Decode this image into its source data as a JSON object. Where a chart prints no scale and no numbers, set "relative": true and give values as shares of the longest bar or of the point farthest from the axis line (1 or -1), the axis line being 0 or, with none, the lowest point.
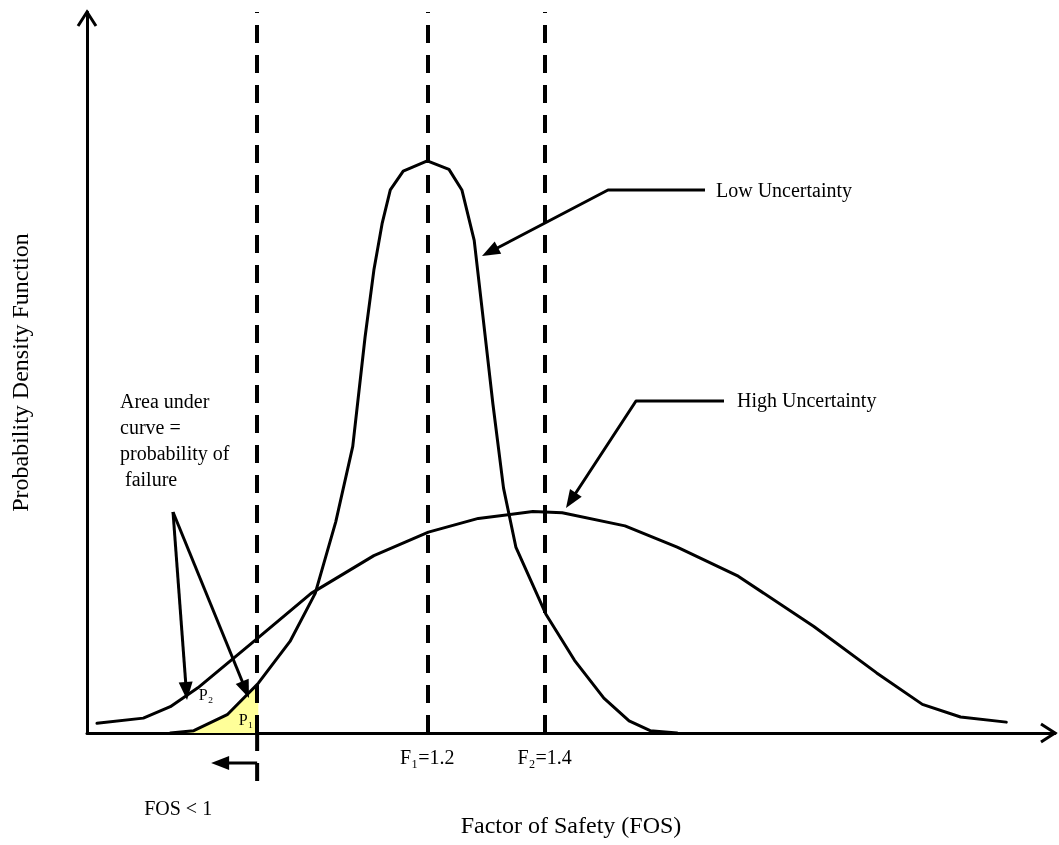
{
  "chart_data": {
    "type": "line",
    "xlabel": "Factor of Safety (FOS)",
    "ylabel": "Probability Density Function",
    "relative": true,
    "xlim": [
      0.62,
      2.27
    ],
    "xticks": [
      {
        "value": 1.2,
        "label": "F₁=1.2"
      },
      {
        "value": 1.4,
        "label": "F₂=1.4"
      }
    ],
    "grid": false,
    "marker": "none",
    "line_style": "solid",
    "series": [
      {
        "type": "area",
        "color": "#ffff99",
        "x": [
          0.762,
          0.802,
          0.859,
          0.912
        ],
        "values": [
          0,
          0.004,
          0.032,
          0.087
        ]
      },
      {
        "color": "#000000",
        "x": [
          0.762,
          0.802,
          0.859,
          0.912,
          0.966,
          1.009,
          1.044,
          1.073,
          1.094,
          1.109,
          1.123,
          1.137,
          1.159,
          1.2,
          1.237,
          1.259,
          1.28,
          1.294,
          1.312,
          1.33,
          1.351,
          1.402,
          1.451,
          1.501,
          1.544,
          1.58,
          1.626
        ],
        "values": [
          0,
          0.004,
          0.032,
          0.087,
          0.16,
          0.244,
          0.369,
          0.501,
          0.692,
          0.809,
          0.89,
          0.949,
          0.982,
          1,
          0.985,
          0.949,
          0.861,
          0.736,
          0.574,
          0.428,
          0.325,
          0.208,
          0.127,
          0.061,
          0.021,
          0.004,
          0
        ]
      },
      {
        "color": "#000000",
        "x": [
          0.637,
          0.716,
          0.762,
          0.809,
          0.909,
          1.002,
          1.109,
          1.202,
          1.287,
          1.38,
          1.43,
          1.537,
          1.626,
          1.73,
          1.859,
          1.966,
          2.044,
          2.109,
          2.187
        ],
        "values": [
          0.017,
          0.026,
          0.046,
          0.079,
          0.164,
          0.244,
          0.31,
          0.351,
          0.375,
          0.387,
          0.385,
          0.362,
          0.325,
          0.274,
          0.186,
          0.105,
          0.05,
          0.028,
          0.019
        ]
      }
    ],
    "ref_lines": [
      {
        "axis": "x",
        "value": 0.91,
        "label": "FOS < 1",
        "line_style": "dashed",
        "color": "#000000"
      },
      {
        "axis": "x",
        "value": 1.2,
        "line_style": "dashed",
        "color": "#000000"
      },
      {
        "axis": "x",
        "value": 1.4,
        "line_style": "dashed",
        "color": "#000000"
      }
    ],
    "annotations": [
      "Low Uncertainty",
      "High Uncertainty",
      "Area under curve = probability of failure",
      "P₂",
      "P₁"
    ]
  }
}
